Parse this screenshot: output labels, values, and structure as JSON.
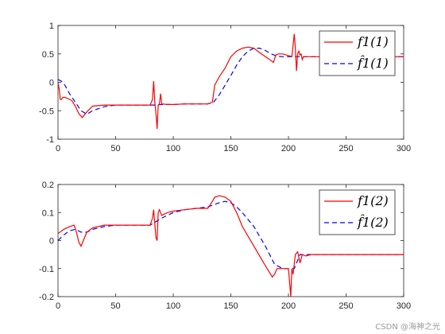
{
  "chart_data": [
    {
      "type": "line",
      "xlim": [
        0,
        300
      ],
      "ylim": [
        -1,
        1
      ],
      "xticks": [
        "0",
        "50",
        "100",
        "150",
        "200",
        "250",
        "300"
      ],
      "yticks": [
        "1",
        "0.5",
        "0",
        "-0.5",
        "-1"
      ],
      "grid": false,
      "legend_placement": "top-right",
      "series": [
        {
          "name": "f1(1)",
          "color": "#ff0000",
          "dash": "solid",
          "x": [
            0,
            1,
            2,
            3,
            4,
            5,
            8,
            12,
            15,
            18,
            21,
            25,
            30,
            40,
            50,
            60,
            70,
            80,
            82,
            83,
            84,
            85,
            86,
            87,
            88,
            89,
            90,
            95,
            100,
            110,
            120,
            130,
            134,
            136,
            140,
            145,
            150,
            155,
            160,
            165,
            170,
            175,
            180,
            185,
            187,
            189,
            191,
            195,
            200,
            203,
            205,
            206,
            207,
            208,
            209,
            210,
            211,
            212,
            213,
            215,
            220,
            230,
            240,
            250,
            260,
            270,
            280,
            290,
            300
          ],
          "y": [
            0.0,
            -0.12,
            -0.3,
            -0.3,
            -0.27,
            -0.26,
            -0.28,
            -0.32,
            -0.42,
            -0.55,
            -0.62,
            -0.52,
            -0.42,
            -0.4,
            -0.4,
            -0.4,
            -0.4,
            -0.4,
            -0.3,
            0.02,
            -0.35,
            -0.55,
            -0.82,
            -0.4,
            -0.38,
            -0.2,
            -0.38,
            -0.39,
            -0.39,
            -0.38,
            -0.38,
            -0.38,
            -0.35,
            -0.05,
            0.1,
            0.25,
            0.45,
            0.55,
            0.6,
            0.62,
            0.6,
            0.52,
            0.45,
            0.38,
            0.35,
            0.48,
            0.5,
            0.5,
            0.47,
            0.45,
            0.85,
            0.6,
            0.2,
            0.5,
            0.55,
            0.48,
            0.5,
            0.4,
            0.45,
            0.45,
            0.45,
            0.45,
            0.45,
            0.45,
            0.45,
            0.45,
            0.45,
            0.45,
            0.45
          ]
        },
        {
          "name": "f̂1(1)",
          "color": "#0000ff",
          "dash": "dashed",
          "x": [
            0,
            3,
            6,
            10,
            15,
            20,
            25,
            30,
            40,
            50,
            60,
            70,
            80,
            85,
            90,
            100,
            110,
            120,
            130,
            135,
            140,
            145,
            150,
            155,
            160,
            165,
            170,
            175,
            180,
            185,
            190,
            195,
            200,
            205,
            210,
            215,
            220,
            230,
            240,
            250,
            260,
            270,
            280,
            290,
            300
          ],
          "y": [
            0.05,
            0.02,
            -0.05,
            -0.2,
            -0.35,
            -0.5,
            -0.56,
            -0.5,
            -0.43,
            -0.4,
            -0.4,
            -0.4,
            -0.4,
            -0.4,
            -0.39,
            -0.39,
            -0.38,
            -0.38,
            -0.38,
            -0.35,
            -0.22,
            -0.05,
            0.12,
            0.3,
            0.45,
            0.55,
            0.6,
            0.6,
            0.56,
            0.5,
            0.46,
            0.45,
            0.45,
            0.45,
            0.45,
            0.45,
            0.45,
            0.45,
            0.45,
            0.45,
            0.45,
            0.45,
            0.45,
            0.45,
            0.45
          ]
        }
      ]
    },
    {
      "type": "line",
      "xlim": [
        0,
        300
      ],
      "ylim": [
        -0.2,
        0.2
      ],
      "xticks": [
        "0",
        "50",
        "100",
        "150",
        "200",
        "250",
        "300"
      ],
      "yticks": [
        "0.2",
        "0.1",
        "0",
        "-0.1",
        "-0.2"
      ],
      "grid": false,
      "legend_placement": "top-right",
      "series": [
        {
          "name": "f1(2)",
          "color": "#ff0000",
          "dash": "solid",
          "x": [
            0,
            5,
            10,
            14,
            16,
            18,
            20,
            22,
            25,
            30,
            40,
            50,
            60,
            70,
            80,
            82,
            83,
            84,
            85,
            86,
            87,
            88,
            90,
            95,
            100,
            110,
            120,
            130,
            134,
            136,
            140,
            145,
            150,
            155,
            160,
            170,
            180,
            186,
            188,
            190,
            195,
            200,
            202,
            203,
            204,
            206,
            208,
            210,
            212,
            215,
            220,
            230,
            240,
            250,
            260,
            270,
            280,
            290,
            300
          ],
          "y": [
            0.025,
            0.04,
            0.05,
            0.055,
            0.03,
            -0.005,
            -0.02,
            0.0,
            0.03,
            0.045,
            0.055,
            0.055,
            0.055,
            0.055,
            0.055,
            0.08,
            0.11,
            0.06,
            0.01,
            0.0,
            0.1,
            0.11,
            0.09,
            0.1,
            0.105,
            0.11,
            0.115,
            0.115,
            0.14,
            0.155,
            0.16,
            0.155,
            0.14,
            0.1,
            0.05,
            -0.02,
            -0.09,
            -0.13,
            -0.12,
            -0.1,
            -0.1,
            -0.1,
            -0.2,
            -0.1,
            -0.12,
            -0.05,
            -0.04,
            -0.08,
            -0.05,
            -0.055,
            -0.05,
            -0.05,
            -0.05,
            -0.05,
            -0.05,
            -0.05,
            -0.05,
            -0.05,
            -0.05
          ]
        },
        {
          "name": "f̂1(2)",
          "color": "#0000ff",
          "dash": "dashed",
          "x": [
            0,
            5,
            10,
            15,
            20,
            25,
            30,
            40,
            50,
            60,
            70,
            80,
            90,
            100,
            110,
            120,
            130,
            140,
            145,
            150,
            155,
            160,
            170,
            180,
            188,
            195,
            200,
            205,
            210,
            220,
            230,
            240,
            250,
            260,
            270,
            280,
            290,
            300
          ],
          "y": [
            0.0,
            0.02,
            0.035,
            0.04,
            0.03,
            0.03,
            0.04,
            0.05,
            0.055,
            0.055,
            0.055,
            0.055,
            0.08,
            0.1,
            0.11,
            0.115,
            0.12,
            0.135,
            0.14,
            0.135,
            0.12,
            0.1,
            0.05,
            -0.02,
            -0.085,
            -0.1,
            -0.1,
            -0.1,
            -0.05,
            -0.05,
            -0.05,
            -0.05,
            -0.05,
            -0.05,
            -0.05,
            -0.05,
            -0.05,
            -0.05
          ]
        }
      ]
    }
  ],
  "watermark": "CSDN @海神之光"
}
